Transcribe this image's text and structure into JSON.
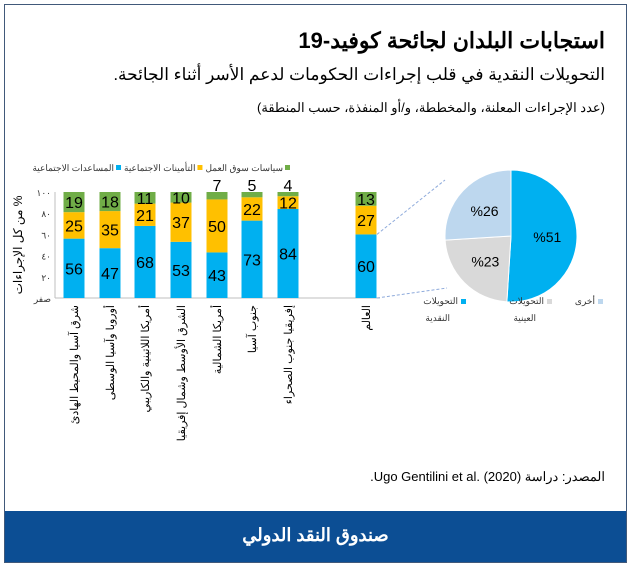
{
  "header": {
    "title": "استجابات البلدان لجائحة كوفيد-19",
    "subtitle": "التحويلات النقدية في قلب إجراءات الحكومات لدعم الأسر أثناء الجائحة.",
    "note": "(عدد الإجراءات المعلنة، والمخططة، و/أو المنفذة، حسب المنطقة)"
  },
  "source": "المصدر: دراسة (2020) .Ugo Gentilini et al.",
  "footer": "صندوق النقد الدولي",
  "chart_data": [
    {
      "type": "bar",
      "stacked": true,
      "ylabel": "% من كل الإجراءات",
      "ylim": [
        0,
        100
      ],
      "yticks": [
        0,
        20,
        40,
        60,
        80,
        100
      ],
      "ytick_labels": [
        "صفر",
        "٢٠",
        "٤٠",
        "٦٠",
        "٨٠",
        "١٠٠"
      ],
      "legend_position": "top",
      "categories": [
        "شرق آسيا والمحيط الهادئ",
        "أوروبا وآسيا الوسطى",
        "أمريكا اللاتينية والكاريبي",
        "الشرق الأوسط وشمال إفريقيا",
        "أمريكا الشمالية",
        "جنوب آسيا",
        "إفريقيا جنوب الصحراء",
        "العالم"
      ],
      "series": [
        {
          "name": "المساعدات الاجتماعية",
          "color": "#00b0f0",
          "values": [
            56,
            47,
            68,
            53,
            43,
            73,
            84,
            60
          ]
        },
        {
          "name": "التأمينات الاجتماعية",
          "color": "#ffc000",
          "values": [
            25,
            35,
            21,
            37,
            50,
            22,
            12,
            27
          ]
        },
        {
          "name": "سياسات سوق العمل",
          "color": "#70ad47",
          "values": [
            19,
            18,
            11,
            10,
            7,
            5,
            4,
            13
          ]
        }
      ]
    },
    {
      "type": "pie",
      "slices": [
        {
          "name": "التحويلات النقدية",
          "value": 51,
          "label": "%51",
          "color": "#00b0f0"
        },
        {
          "name": "التحويلات العينية",
          "value": 23,
          "label": "%23",
          "color": "#d9d9d9"
        },
        {
          "name": "أخرى",
          "value": 26,
          "label": "%26",
          "color": "#bdd7ee"
        }
      ],
      "legend_position": "bottom"
    }
  ]
}
